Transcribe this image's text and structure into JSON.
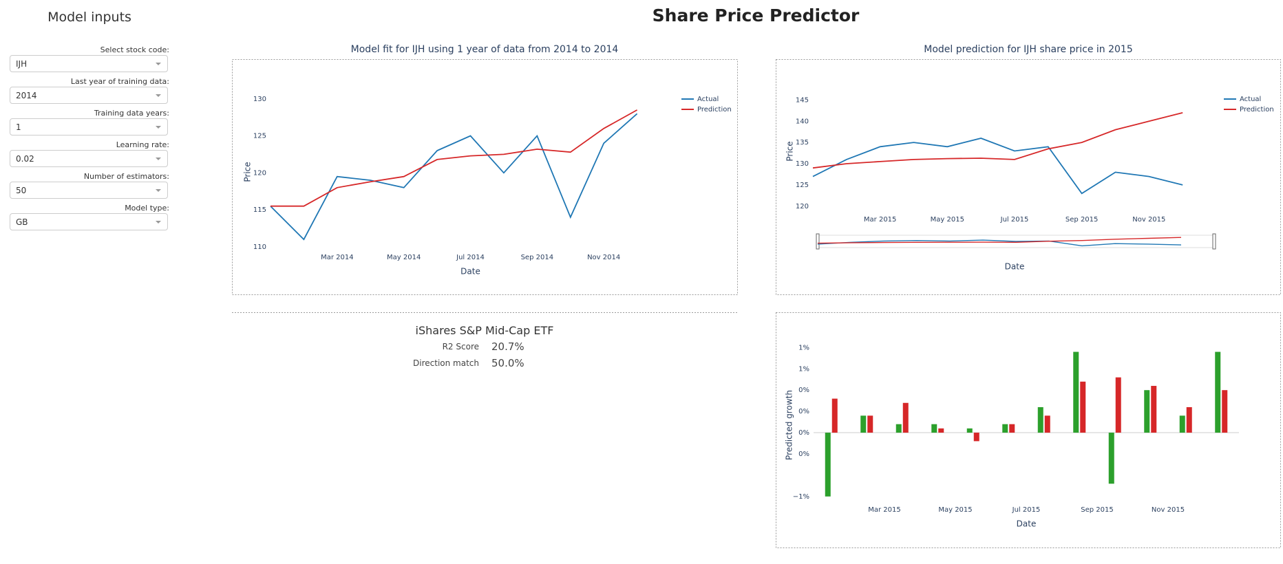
{
  "header": {
    "title": "Share Price Predictor"
  },
  "sidebar": {
    "title": "Model inputs",
    "inputs": [
      {
        "label": "Select stock code:",
        "value": "IJH"
      },
      {
        "label": "Last year of training data:",
        "value": "2014"
      },
      {
        "label": "Training data years:",
        "value": "1"
      },
      {
        "label": "Learning rate:",
        "value": "0.02"
      },
      {
        "label": "Number of estimators:",
        "value": "50"
      },
      {
        "label": "Model type:",
        "value": "GB"
      }
    ]
  },
  "summary": {
    "name": "iShares S&P Mid-Cap ETF",
    "metrics": [
      {
        "label": "R2 Score",
        "value": "20.7%"
      },
      {
        "label": "Direction match",
        "value": "50.0%"
      }
    ]
  },
  "chart_data": [
    {
      "type": "line",
      "title": "Model fit for IJH using 1 year of data from 2014 to 2014",
      "x_label": "Date",
      "y_label": "Price",
      "grid": false,
      "legend": "top-right",
      "x": [
        "2014-01",
        "2014-02",
        "2014-03",
        "2014-04",
        "2014-05",
        "2014-06",
        "2014-07",
        "2014-08",
        "2014-09",
        "2014-10",
        "2014-11",
        "2014-12"
      ],
      "series": [
        {
          "name": "Actual",
          "color": "#1f77b4",
          "values": [
            115.5,
            111,
            119.5,
            119,
            118,
            123,
            125,
            120,
            125,
            114,
            124,
            128
          ]
        },
        {
          "name": "Prediction",
          "color": "#d62728",
          "values": [
            115.5,
            115.5,
            118,
            118.8,
            119.5,
            121.8,
            122.3,
            122.5,
            123.2,
            122.8,
            126,
            128.5
          ]
        }
      ],
      "xlim": [
        "2014-01",
        "2015-01"
      ],
      "xticks": [
        {
          "value": "2014-03",
          "label": "Mar 2014"
        },
        {
          "value": "2014-05",
          "label": "May 2014"
        },
        {
          "value": "2014-07",
          "label": "Jul 2014"
        },
        {
          "value": "2014-09",
          "label": "Sep 2014"
        },
        {
          "value": "2014-11",
          "label": "Nov 2014"
        }
      ],
      "ylim": [
        109.8,
        131
      ],
      "yticks": [
        110,
        115,
        120,
        125,
        130
      ]
    },
    {
      "type": "line",
      "title": "Model prediction for IJH share price in 2015",
      "x_label": "Date",
      "y_label": "Price",
      "grid": false,
      "legend": "top-right",
      "range_slider": true,
      "x": [
        "2015-01",
        "2015-02",
        "2015-03",
        "2015-04",
        "2015-05",
        "2015-06",
        "2015-07",
        "2015-08",
        "2015-09",
        "2015-10",
        "2015-11",
        "2015-12"
      ],
      "series": [
        {
          "name": "Actual",
          "color": "#1f77b4",
          "values": [
            127,
            131,
            134,
            135,
            134,
            136,
            133,
            134,
            123,
            128,
            127,
            125
          ]
        },
        {
          "name": "Prediction",
          "color": "#d62728",
          "values": [
            129,
            130,
            130.5,
            131,
            131.2,
            131.3,
            131,
            133.5,
            135,
            138,
            140,
            142
          ]
        }
      ],
      "xlim": [
        "2015-01",
        "2016-01"
      ],
      "xticks": [
        {
          "value": "2015-03",
          "label": "Mar 2015"
        },
        {
          "value": "2015-05",
          "label": "May 2015"
        },
        {
          "value": "2015-07",
          "label": "Jul 2015"
        },
        {
          "value": "2015-09",
          "label": "Sep 2015"
        },
        {
          "value": "2015-11",
          "label": "Nov 2015"
        }
      ],
      "ylim": [
        119,
        147
      ],
      "yticks": [
        120,
        125,
        130,
        135,
        140,
        145
      ]
    },
    {
      "type": "bar",
      "x_label": "Date",
      "y_label": "Predicted growth",
      "grid": false,
      "x": [
        "2015-01",
        "2015-02",
        "2015-03",
        "2015-04",
        "2015-05",
        "2015-06",
        "2015-07",
        "2015-08",
        "2015-09",
        "2015-10",
        "2015-11",
        "2015-12"
      ],
      "series": [
        {
          "color": "#2ca02c",
          "values": [
            -0.75,
            0.2,
            0.1,
            0.1,
            0.05,
            0.1,
            0.3,
            0.95,
            -0.6,
            0.5,
            0.2,
            0.95
          ]
        },
        {
          "color": "#d62728",
          "values": [
            0.4,
            0.2,
            0.35,
            0.05,
            -0.1,
            0.1,
            0.2,
            0.6,
            0.65,
            0.55,
            0.3,
            0.5
          ]
        }
      ],
      "xlim": [
        "2015-01",
        "2016-01"
      ],
      "xticks": [
        {
          "value": "2015-03",
          "label": "Mar 2015"
        },
        {
          "value": "2015-05",
          "label": "May 2015"
        },
        {
          "value": "2015-07",
          "label": "Jul 2015"
        },
        {
          "value": "2015-09",
          "label": "Sep 2015"
        },
        {
          "value": "2015-11",
          "label": "Nov 2015"
        }
      ],
      "ylim": [
        -0.8,
        1.1
      ],
      "yticks": [
        {
          "value": -0.75,
          "label": "−1%"
        },
        {
          "value": -0.25,
          "label": "0%"
        },
        {
          "value": 0,
          "label": "0%"
        },
        {
          "value": 0.25,
          "label": "0%"
        },
        {
          "value": 0.5,
          "label": "0%"
        },
        {
          "value": 0.75,
          "label": "1%"
        },
        {
          "value": 1,
          "label": "1%"
        }
      ]
    }
  ]
}
